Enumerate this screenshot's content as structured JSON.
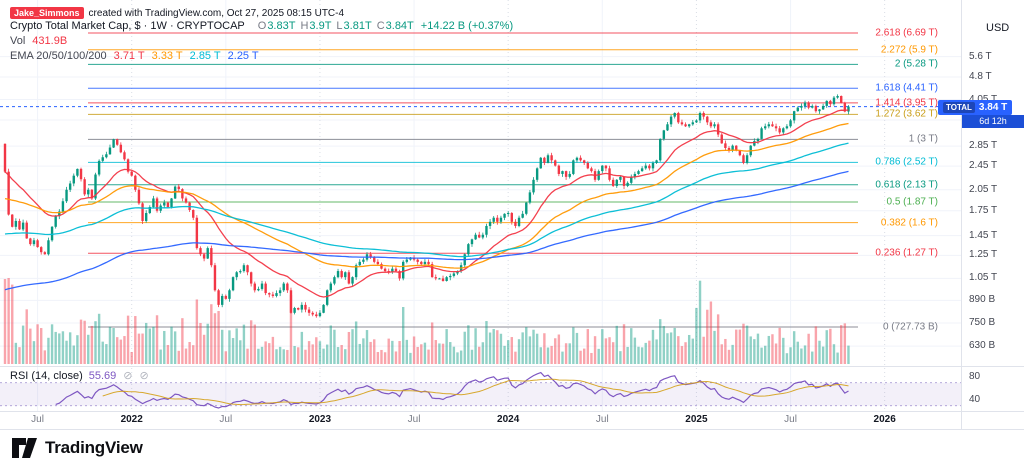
{
  "attribution": {
    "badge": "Jake_Simmons",
    "text": "created with TradingView.com, Oct 27, 2025 08:15 UTC-4"
  },
  "legend": {
    "title": "Crypto Total Market Cap, $ · 1W · CRYPTOCAP",
    "ohlc": {
      "o_label": "O",
      "o": "3.83T",
      "h_label": "H",
      "h": "3.9T",
      "l_label": "L",
      "l": "3.81T",
      "c_label": "C",
      "c": "3.84T",
      "change": "+14.22 B (+0.37%)"
    },
    "vol_label": "Vol",
    "vol_value": "431.9B",
    "ema_label": "EMA 20/50/100/200",
    "ema_values": [
      "3.71 T",
      "3.33 T",
      "2.85 T",
      "2.25 T"
    ]
  },
  "rsi_legend": {
    "label": "RSI (14, close)",
    "value": "55.69"
  },
  "icons": {
    "rsi_icon_1": "⊘",
    "rsi_icon_2": "⊘"
  },
  "badge": {
    "symbol": "TOTAL",
    "price": "3.84 T",
    "countdown": "6d 12h"
  },
  "axis": {
    "unit": "USD",
    "price_ticks": [
      {
        "label": "5.6 T",
        "value": 5.6
      },
      {
        "label": "4.8 T",
        "value": 4.8
      },
      {
        "label": "4.05 T",
        "value": 4.05
      },
      {
        "label": "3.47 T",
        "value": 3.47
      },
      {
        "label": "2.85 T",
        "value": 2.85
      },
      {
        "label": "2.45 T",
        "value": 2.45
      },
      {
        "label": "2.05 T",
        "value": 2.05
      },
      {
        "label": "1.75 T",
        "value": 1.75
      },
      {
        "label": "1.45 T",
        "value": 1.45
      },
      {
        "label": "1.25 T",
        "value": 1.25
      },
      {
        "label": "1.05 T",
        "value": 1.05
      },
      {
        "label": "890 B",
        "value": 0.89
      },
      {
        "label": "750 B",
        "value": 0.75
      },
      {
        "label": "630 B",
        "value": 0.63
      }
    ],
    "rsi_ticks": [
      {
        "label": "80",
        "value": 80
      },
      {
        "label": "40",
        "value": 40
      }
    ]
  },
  "time_axis": [
    {
      "label": "Jul",
      "week": 9,
      "major": false
    },
    {
      "label": "2022",
      "week": 35,
      "major": true
    },
    {
      "label": "Jul",
      "week": 61,
      "major": false
    },
    {
      "label": "2023",
      "week": 87,
      "major": true
    },
    {
      "label": "Jul",
      "week": 113,
      "major": false
    },
    {
      "label": "2024",
      "week": 139,
      "major": true
    },
    {
      "label": "Jul",
      "week": 165,
      "major": false
    },
    {
      "label": "2025",
      "week": 191,
      "major": true
    },
    {
      "label": "Jul",
      "week": 217,
      "major": false
    },
    {
      "label": "2026",
      "week": 243,
      "major": true
    }
  ],
  "colors": {
    "up": "#089981",
    "down": "#f23645",
    "vol_up": "rgba(8,153,129,0.45)",
    "vol_down": "rgba(242,54,69,0.45)",
    "ema20": "#f23645",
    "ema50": "#ff9800",
    "ema100": "#00bcd4",
    "ema200": "#2962ff",
    "rsi": "#7e57c2",
    "rsi_ma": "#d4a017",
    "price_line": "#2962ff"
  },
  "logo": {
    "name": "TradingView"
  },
  "chart_data": {
    "type": "candlestick",
    "symbol": "CRYPTOCAP:TOTAL",
    "title": "Crypto Total Market Cap, $",
    "interval": "1W",
    "scale": "log",
    "y_axis_unit": "USD",
    "x_start": "May 2021",
    "x_end": "Oct 2025",
    "last_bar": {
      "open": "3.83T",
      "high": "3.9T",
      "low": "3.81T",
      "close": "3.84T",
      "change": "+14.22 B (+0.37%)"
    },
    "current_close": 3.84,
    "volume_current": "431.9B",
    "ema_periods": [
      20,
      50,
      100,
      200
    ],
    "ema_current": [
      "3.71 T",
      "3.33 T",
      "2.85 T",
      "2.25 T"
    ],
    "rsi": {
      "period": 14,
      "source": "close",
      "current": 55.69
    },
    "fib_levels": [
      {
        "label": "2.618 (6.69 T)",
        "value": 6.69,
        "color": "#f23645"
      },
      {
        "label": "2.272 (5.9 T)",
        "value": 5.9,
        "color": "#ff9800"
      },
      {
        "label": "2 (5.28 T)",
        "value": 5.28,
        "color": "#089981"
      },
      {
        "label": "1.618 (4.41 T)",
        "value": 4.41,
        "color": "#2962ff"
      },
      {
        "label": "1.414 (3.95 T)",
        "value": 3.95,
        "color": "#f23645"
      },
      {
        "label": "1.272 (3.62 T)",
        "value": 3.62,
        "color": "#c99e1a"
      },
      {
        "label": "1 (3 T)",
        "value": 3.0,
        "color": "#787b86"
      },
      {
        "label": "0.786 (2.52 T)",
        "value": 2.52,
        "color": "#00bcd4"
      },
      {
        "label": "0.618 (2.13 T)",
        "value": 2.13,
        "color": "#089981"
      },
      {
        "label": "0.5 (1.87 T)",
        "value": 1.87,
        "color": "#4caf50"
      },
      {
        "label": "0.382 (1.6 T)",
        "value": 1.6,
        "color": "#ff9800"
      },
      {
        "label": "0.236 (1.27 T)",
        "value": 1.27,
        "color": "#f23645"
      },
      {
        "label": "0 (727.73 B)",
        "value": 0.72773,
        "color": "#787b86"
      }
    ],
    "closes_trillions": [
      2.35,
      1.7,
      1.55,
      1.62,
      1.52,
      1.6,
      1.42,
      1.36,
      1.4,
      1.33,
      1.28,
      1.26,
      1.4,
      1.55,
      1.68,
      1.74,
      1.88,
      2.05,
      2.15,
      2.28,
      2.4,
      2.22,
      1.98,
      2.05,
      1.92,
      2.3,
      2.55,
      2.62,
      2.68,
      2.82,
      3.0,
      2.88,
      2.72,
      2.58,
      2.35,
      2.28,
      2.05,
      1.85,
      1.62,
      1.72,
      1.8,
      1.92,
      1.75,
      1.82,
      1.86,
      1.8,
      1.92,
      2.1,
      2.06,
      1.92,
      1.86,
      1.76,
      1.66,
      1.32,
      1.26,
      1.22,
      1.32,
      1.16,
      0.96,
      0.86,
      0.92,
      0.9,
      0.96,
      1.06,
      1.1,
      1.11,
      1.16,
      1.1,
      1.01,
      0.96,
      0.97,
      1.01,
      0.94,
      0.93,
      0.92,
      0.94,
      0.96,
      1.01,
      0.96,
      0.81,
      0.84,
      0.83,
      0.86,
      0.83,
      0.81,
      0.8,
      0.79,
      0.81,
      0.86,
      0.96,
      1.01,
      1.06,
      1.11,
      1.06,
      1.1,
      1.01,
      1.06,
      1.16,
      1.19,
      1.21,
      1.26,
      1.23,
      1.19,
      1.17,
      1.13,
      1.11,
      1.1,
      1.13,
      1.11,
      1.05,
      1.19,
      1.21,
      1.23,
      1.21,
      1.19,
      1.17,
      1.19,
      1.17,
      1.06,
      1.05,
      1.05,
      1.03,
      1.06,
      1.07,
      1.09,
      1.11,
      1.16,
      1.26,
      1.36,
      1.41,
      1.46,
      1.43,
      1.46,
      1.56,
      1.61,
      1.66,
      1.61,
      1.66,
      1.71,
      1.72,
      1.61,
      1.56,
      1.66,
      1.71,
      1.86,
      2.01,
      2.21,
      2.41,
      2.61,
      2.51,
      2.66,
      2.56,
      2.46,
      2.31,
      2.36,
      2.26,
      2.31,
      2.56,
      2.61,
      2.56,
      2.51,
      2.41,
      2.36,
      2.21,
      2.36,
      2.46,
      2.41,
      2.21,
      2.11,
      2.21,
      2.26,
      2.11,
      2.16,
      2.26,
      2.31,
      2.36,
      2.41,
      2.46,
      2.41,
      2.51,
      2.56,
      3.01,
      3.21,
      3.36,
      3.56,
      3.66,
      3.41,
      3.36,
      3.31,
      3.36,
      3.41,
      3.46,
      3.66,
      3.56,
      3.41,
      3.31,
      3.36,
      3.11,
      2.91,
      2.81,
      2.76,
      2.86,
      2.76,
      2.66,
      2.51,
      2.66,
      2.86,
      2.96,
      3.01,
      3.26,
      3.31,
      3.36,
      3.31,
      3.26,
      3.16,
      3.26,
      3.31,
      3.46,
      3.71,
      3.81,
      3.86,
      3.96,
      3.81,
      3.86,
      3.71,
      3.76,
      3.86,
      4.01,
      3.91,
      4.11,
      4.16,
      3.95,
      3.7,
      3.84
    ]
  }
}
